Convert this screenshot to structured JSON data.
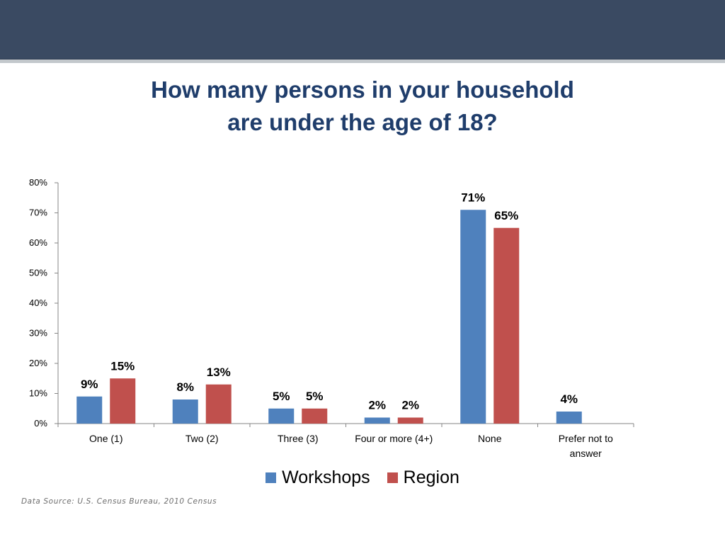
{
  "chart_data": {
    "type": "bar",
    "title": "How many persons in your household are under the age of 18?",
    "title_lines": [
      "How many persons in your household",
      "are under the age of 18?"
    ],
    "categories": [
      [
        "One (1)"
      ],
      [
        "Two (2)"
      ],
      [
        "Three (3)"
      ],
      [
        "Four or more (4+)"
      ],
      [
        "None"
      ],
      [
        "Prefer not to",
        "answer"
      ]
    ],
    "series": [
      {
        "name": "Workshops",
        "color": "#4f81bd",
        "values": [
          9,
          8,
          5,
          2,
          71,
          4
        ],
        "labels": [
          "9%",
          "8%",
          "5%",
          "2%",
          "71%",
          "4%"
        ]
      },
      {
        "name": "Region",
        "color": "#c0504d",
        "values": [
          15,
          13,
          5,
          2,
          65,
          null
        ],
        "labels": [
          "15%",
          "13%",
          "5%",
          "2%",
          "65%",
          ""
        ]
      }
    ],
    "ylim": [
      0,
      80
    ],
    "yticks": [
      "0%",
      "10%",
      "20%",
      "30%",
      "40%",
      "50%",
      "60%",
      "70%",
      "80%"
    ],
    "xlabel": "",
    "ylabel": "",
    "grid": false,
    "legend_position": "bottom"
  },
  "legend": {
    "workshops": "Workshops",
    "region": "Region",
    "workshops_color": "#4f81bd",
    "region_color": "#c0504d"
  },
  "footer": {
    "source": "Data Source: U.S. Census Bureau, 2010 Census"
  }
}
